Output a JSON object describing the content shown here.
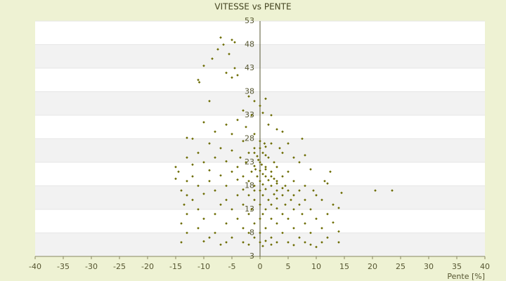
{
  "chart_data": {
    "type": "scatter",
    "title": "VITESSE vs PENTE",
    "x_label": "Pente [%]",
    "color": "#6b6b00",
    "grid": true,
    "xlim": [
      -40,
      40
    ],
    "xticks": [
      -40,
      -35,
      -30,
      -25,
      -20,
      -15,
      -10,
      -5,
      0,
      5,
      10,
      15,
      20,
      25,
      30,
      35,
      40
    ],
    "ylim": [
      3,
      53
    ],
    "yticks": [
      3,
      8,
      13,
      18,
      23,
      28,
      33,
      38,
      43,
      48,
      53
    ],
    "x": [
      -7,
      -5,
      -4.5,
      -6.5,
      -7.5,
      -5.5,
      -8.5,
      -10,
      -4.5,
      -6,
      -5,
      -11,
      -10.8,
      -4,
      -9,
      -2,
      -1,
      0,
      1,
      -3,
      -1.5,
      0.5,
      2,
      -4,
      -6,
      -10,
      1.5,
      -2.5,
      3,
      -5,
      -8,
      4,
      -1,
      -12,
      -13,
      7.5,
      -9,
      -3,
      0,
      2,
      5,
      -7,
      -1,
      1,
      3.5,
      -11,
      -5,
      -2,
      0.5,
      4,
      8,
      -13,
      -8,
      -3.5,
      -0.5,
      1.5,
      6,
      -10,
      -6,
      -2.5,
      0,
      2.5,
      7,
      -15,
      -12,
      -4,
      -1,
      1,
      3,
      -14.5,
      -9,
      -5,
      -1.5,
      0,
      0.5,
      2,
      5,
      9,
      12.5,
      -12,
      -7,
      -3,
      -0.5,
      1,
      4,
      -15,
      -13,
      -9,
      -4,
      -2,
      0,
      1.5,
      3,
      6,
      11.5,
      -11,
      -6,
      -1,
      0.5,
      2,
      4.5,
      8,
      12,
      -14,
      -8,
      -3,
      -1,
      0,
      1,
      3,
      5,
      7,
      9.5,
      20.5,
      23.5,
      -13,
      -10,
      -4,
      -2,
      0.5,
      2.5,
      4,
      6,
      10,
      14.5,
      -12,
      -6,
      -1,
      1.5,
      3,
      5.5,
      8,
      11,
      -13.5,
      -7,
      -3,
      0,
      2,
      4.5,
      7,
      13,
      -11,
      -5,
      -1.5,
      1,
      3,
      6,
      9,
      14,
      -13,
      -8,
      -2,
      0.5,
      4,
      7.5,
      12,
      -10,
      -4,
      0,
      2,
      5,
      10,
      -14,
      -6,
      -1,
      3,
      8,
      13,
      -11,
      -3,
      1,
      6,
      11,
      -13,
      -8,
      -2,
      0,
      4,
      9,
      14,
      -9,
      -5,
      -1,
      2,
      7,
      12,
      -14,
      -10,
      -6,
      -3,
      0,
      1,
      3,
      5,
      8,
      11,
      14,
      -7,
      -2,
      0.5,
      2,
      6,
      9,
      10,
      -1,
      0,
      1,
      0.3,
      -0.3,
      0.8,
      -0.8,
      2,
      3,
      4,
      2.5,
      1
    ],
    "values": [
      49.5,
      49,
      48.5,
      48,
      47,
      46,
      45,
      43.5,
      43,
      42,
      41,
      40.5,
      40,
      41.5,
      36,
      37,
      36,
      35,
      36.5,
      34,
      33,
      33.5,
      33,
      32,
      31,
      31.5,
      31,
      30.5,
      30,
      29,
      29.5,
      29.5,
      29,
      28,
      28.2,
      28,
      27,
      27.5,
      27.5,
      27,
      27,
      26,
      26,
      26.3,
      26,
      25,
      25.5,
      25,
      25,
      25,
      24.5,
      24,
      24,
      24,
      24.3,
      24,
      24,
      23,
      23.2,
      23,
      23,
      23,
      23,
      22,
      22.5,
      22,
      22.2,
      22,
      22,
      21,
      21.3,
      21,
      21,
      21.2,
      20.5,
      21,
      21,
      21.5,
      21,
      20,
      20.2,
      20,
      20,
      20,
      20,
      19.5,
      19,
      19,
      19.3,
      19,
      19,
      19.2,
      19,
      19,
      19,
      18,
      18,
      18,
      18.3,
      18,
      18,
      18,
      18.5,
      17,
      17,
      17.2,
      17,
      17,
      17.3,
      17,
      17,
      17,
      17,
      17,
      17,
      16,
      16.3,
      16,
      16,
      16,
      16.2,
      16,
      16,
      16,
      16.5,
      15,
      15,
      15,
      15,
      15.3,
      15,
      15,
      15,
      14,
      14,
      14,
      14,
      14,
      14,
      14,
      14,
      13,
      13,
      13,
      13,
      13.2,
      13,
      13,
      13.3,
      12,
      12,
      12,
      12,
      12,
      12,
      12,
      11,
      11,
      11,
      11,
      11,
      11,
      10,
      10,
      10,
      10,
      10,
      10.2,
      9,
      9,
      9,
      9,
      9,
      8,
      8,
      8,
      8,
      8,
      8,
      8.3,
      7,
      7,
      7,
      7,
      7,
      7,
      6,
      6.2,
      6,
      6,
      6,
      6.3,
      6,
      6,
      6,
      6,
      6,
      5.5,
      5.5,
      5.2,
      5.5,
      5.4,
      5.5,
      5,
      25,
      26,
      24.5,
      22.5,
      23.5,
      27,
      21.5,
      20,
      18.5,
      17.5,
      19.5,
      21.5
    ]
  }
}
